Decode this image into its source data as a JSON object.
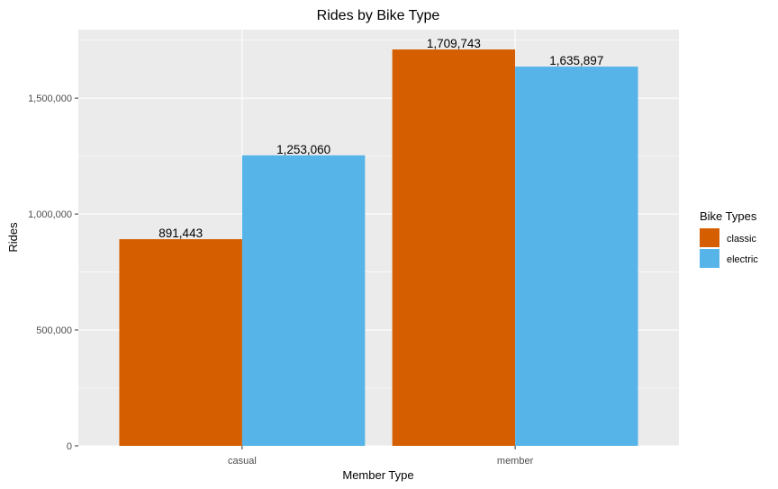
{
  "chart_data": {
    "type": "bar",
    "title": "Rides by Bike Type",
    "xlabel": "Member Type",
    "ylabel": "Rides",
    "categories": [
      "casual",
      "member"
    ],
    "series": [
      {
        "name": "classic",
        "values": [
          891443,
          1709743
        ],
        "labels": [
          "891,443",
          "1,709,743"
        ]
      },
      {
        "name": "electric",
        "values": [
          1253060,
          1635897
        ],
        "labels": [
          "1,253,060",
          "1,635,897"
        ]
      }
    ],
    "ylim": [
      0,
      1795230
    ],
    "yticks": [
      0,
      500000,
      1000000,
      1500000
    ],
    "ytick_labels": [
      "0",
      "500,000",
      "1,000,000",
      "1,500,000"
    ],
    "legend": {
      "title": "Bike Types",
      "position": "right"
    },
    "grid": true
  },
  "colors": {
    "classic": "#D55E00",
    "electric": "#56B4E9",
    "panel": "#EBEBEB",
    "grid": "#FFFFFF"
  }
}
